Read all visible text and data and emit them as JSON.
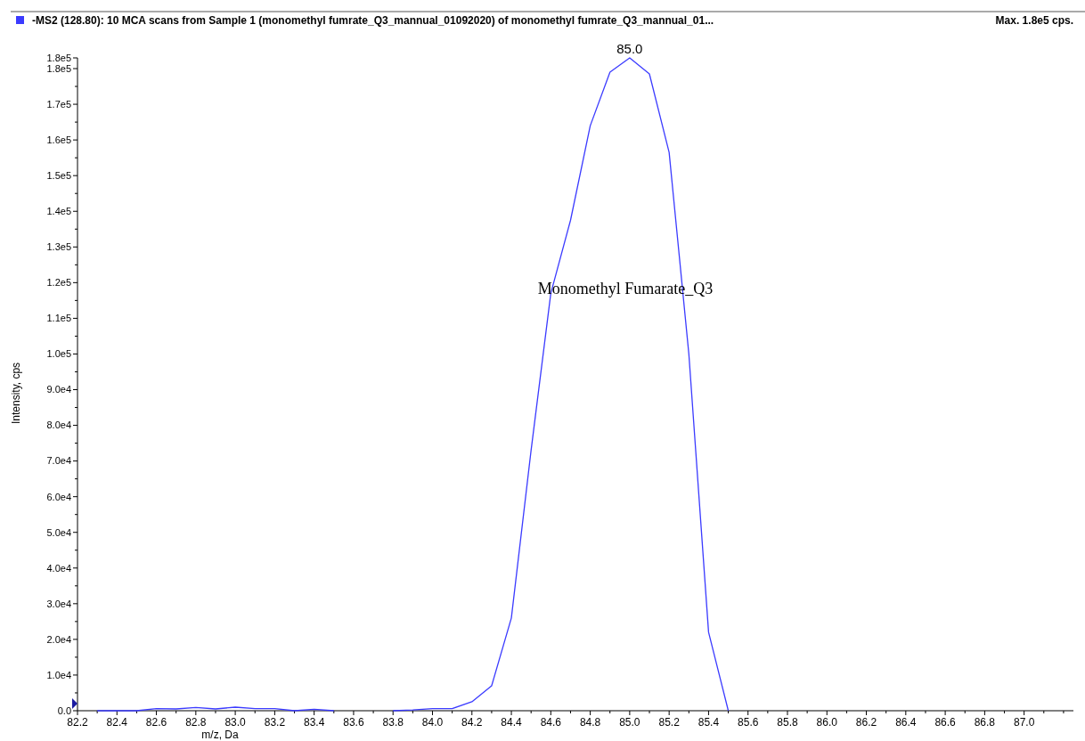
{
  "chart_data": {
    "type": "line",
    "title": "-MS2 (128.80): 10 MCA scans from Sample 1 (monomethyl fumrate_Q3_mannual_01092020) of monomethyl fumrate_Q3_mannual_01...",
    "subtitle": "Max. 1.8e5 cps.",
    "xlabel": "m/z, Da",
    "ylabel": "Intensity, cps",
    "annotations": [
      {
        "text": "85.0",
        "x": 85.0,
        "y": 183000
      },
      "Monomethyl Fumarate_Q3"
    ],
    "x": [
      82.3,
      82.4,
      82.5,
      82.6,
      82.7,
      82.8,
      82.9,
      83.0,
      83.1,
      83.2,
      83.3,
      83.4,
      83.5,
      83.6,
      83.7,
      83.8,
      83.9,
      84.0,
      84.1,
      84.2,
      84.3,
      84.4,
      84.5,
      84.6,
      84.7,
      84.8,
      84.9,
      85.0,
      85.1,
      85.2,
      85.3,
      85.4,
      85.5
    ],
    "series": [
      {
        "color": "#3b3bff",
        "values": [
          0,
          0,
          0,
          600,
          500,
          900,
          500,
          1000,
          600,
          600,
          0,
          400,
          0,
          null,
          null,
          0,
          200,
          600,
          600,
          2500,
          7000,
          26000,
          73000,
          117000,
          137500,
          164000,
          179000,
          183000,
          178500,
          156500,
          100000,
          22000,
          0
        ]
      }
    ],
    "xlim": [
      82.2,
      87.25
    ],
    "xticks": [
      82.2,
      {
        "value": 82.3,
        "label": null
      },
      82.4,
      {
        "value": 82.5,
        "label": null
      },
      82.6,
      {
        "value": 82.7,
        "label": null
      },
      82.8,
      {
        "value": 82.9,
        "label": null
      },
      {
        "value": 83.0,
        "label": "83.0"
      },
      {
        "value": 83.1,
        "label": null
      },
      83.2,
      {
        "value": 83.3,
        "label": null
      },
      83.4,
      {
        "value": 83.5,
        "label": null
      },
      83.6,
      {
        "value": 83.7,
        "label": null
      },
      83.8,
      {
        "value": 83.9,
        "label": null
      },
      {
        "value": 84.0,
        "label": "84.0"
      },
      {
        "value": 84.1,
        "label": null
      },
      84.2,
      {
        "value": 84.3,
        "label": null
      },
      84.4,
      {
        "value": 84.5,
        "label": null
      },
      84.6,
      {
        "value": 84.7,
        "label": null
      },
      84.8,
      {
        "value": 84.9,
        "label": null
      },
      {
        "value": 85.0,
        "label": "85.0"
      },
      {
        "value": 85.1,
        "label": null
      },
      85.2,
      {
        "value": 85.3,
        "label": null
      },
      85.4,
      {
        "value": 85.5,
        "label": null
      },
      85.6,
      {
        "value": 85.7,
        "label": null
      },
      85.8,
      {
        "value": 85.9,
        "label": null
      },
      {
        "value": 86.0,
        "label": "86.0"
      },
      {
        "value": 86.1,
        "label": null
      },
      86.2,
      {
        "value": 86.3,
        "label": null
      },
      86.4,
      {
        "value": 86.5,
        "label": null
      },
      86.6,
      {
        "value": 86.7,
        "label": null
      },
      86.8,
      {
        "value": 86.9,
        "label": null
      },
      {
        "value": 87.0,
        "label": "87.0"
      },
      {
        "value": 87.1,
        "label": null
      },
      {
        "value": 87.2,
        "label": null
      }
    ],
    "ylim": [
      0,
      183000
    ],
    "yticks": [
      {
        "value": 0,
        "label": "0.0"
      },
      {
        "value": 5000,
        "label": null
      },
      {
        "value": 10000,
        "label": "1.0e4"
      },
      {
        "value": 15000,
        "label": null
      },
      {
        "value": 20000,
        "label": "2.0e4"
      },
      {
        "value": 25000,
        "label": null
      },
      {
        "value": 30000,
        "label": "3.0e4"
      },
      {
        "value": 35000,
        "label": null
      },
      {
        "value": 40000,
        "label": "4.0e4"
      },
      {
        "value": 45000,
        "label": null
      },
      {
        "value": 50000,
        "label": "5.0e4"
      },
      {
        "value": 55000,
        "label": null
      },
      {
        "value": 60000,
        "label": "6.0e4"
      },
      {
        "value": 65000,
        "label": null
      },
      {
        "value": 70000,
        "label": "7.0e4"
      },
      {
        "value": 75000,
        "label": null
      },
      {
        "value": 80000,
        "label": "8.0e4"
      },
      {
        "value": 85000,
        "label": null
      },
      {
        "value": 90000,
        "label": "9.0e4"
      },
      {
        "value": 95000,
        "label": null
      },
      {
        "value": 100000,
        "label": "1.0e5"
      },
      {
        "value": 105000,
        "label": null
      },
      {
        "value": 110000,
        "label": "1.1e5"
      },
      {
        "value": 115000,
        "label": null
      },
      {
        "value": 120000,
        "label": "1.2e5"
      },
      {
        "value": 125000,
        "label": null
      },
      {
        "value": 130000,
        "label": "1.3e5"
      },
      {
        "value": 135000,
        "label": null
      },
      {
        "value": 140000,
        "label": "1.4e5"
      },
      {
        "value": 145000,
        "label": null
      },
      {
        "value": 150000,
        "label": "1.5e5"
      },
      {
        "value": 155000,
        "label": null
      },
      {
        "value": 160000,
        "label": "1.6e5"
      },
      {
        "value": 165000,
        "label": null
      },
      {
        "value": 170000,
        "label": "1.7e5"
      },
      {
        "value": 175000,
        "label": null
      },
      {
        "value": 180000,
        "label": "1.8e5"
      },
      {
        "value": 183000,
        "label": "1.8e5"
      }
    ],
    "grid": false,
    "marker": "none",
    "line_style": "solid"
  }
}
